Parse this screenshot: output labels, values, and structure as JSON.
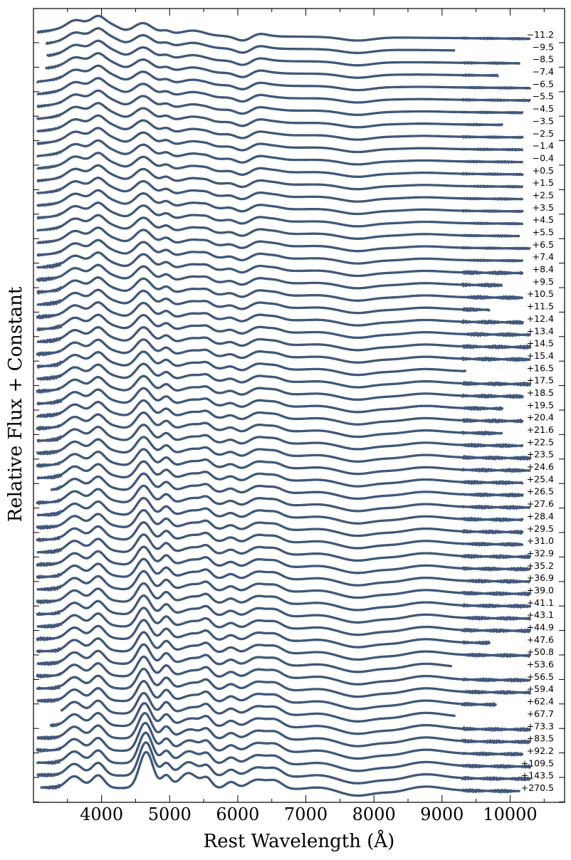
{
  "chart_data": {
    "type": "line",
    "xlabel": "Rest Wavelength (Å)",
    "ylabel": "Relative Flux + Constant",
    "xlim": [
      3000,
      10800
    ],
    "xticks": [
      4000,
      5000,
      6000,
      7000,
      8000,
      9000,
      10000
    ],
    "grid": false,
    "line_color": "#40587a",
    "series_note": "stacked spectra, one per phase label (days)",
    "series": [
      {
        "label": "−11.2",
        "x_start": 3050,
        "x_end": 10300
      },
      {
        "label": "−9.5",
        "x_start": 3180,
        "x_end": 9200
      },
      {
        "label": "−8.5",
        "x_start": 3200,
        "x_end": 10150
      },
      {
        "label": "−7.4",
        "x_start": 3180,
        "x_end": 9830
      },
      {
        "label": "−6.5",
        "x_start": 3050,
        "x_end": 10300
      },
      {
        "label": "−5.5",
        "x_start": 3050,
        "x_end": 10300
      },
      {
        "label": "−4.5",
        "x_start": 3050,
        "x_end": 10200
      },
      {
        "label": "−3.5",
        "x_start": 3050,
        "x_end": 9900
      },
      {
        "label": "−2.5",
        "x_start": 3050,
        "x_end": 10200
      },
      {
        "label": "−1.4",
        "x_start": 3050,
        "x_end": 10200
      },
      {
        "label": "−0.4",
        "x_start": 3050,
        "x_end": 10200
      },
      {
        "label": "+0.5",
        "x_start": 3050,
        "x_end": 10200
      },
      {
        "label": "+1.5",
        "x_start": 3050,
        "x_end": 10200
      },
      {
        "label": "+2.5",
        "x_start": 3050,
        "x_end": 10200
      },
      {
        "label": "+3.5",
        "x_start": 3050,
        "x_end": 10200
      },
      {
        "label": "+4.5",
        "x_start": 3050,
        "x_end": 10200
      },
      {
        "label": "+5.5",
        "x_start": 3050,
        "x_end": 10150
      },
      {
        "label": "+6.5",
        "x_start": 3050,
        "x_end": 10300
      },
      {
        "label": "+7.4",
        "x_start": 3050,
        "x_end": 10200
      },
      {
        "label": "+8.4",
        "x_start": 3050,
        "x_end": 10200
      },
      {
        "label": "+9.5",
        "x_start": 3050,
        "x_end": 9900
      },
      {
        "label": "+10.5",
        "x_start": 3050,
        "x_end": 10200
      },
      {
        "label": "+11.5",
        "x_start": 3050,
        "x_end": 9700
      },
      {
        "label": "+12.4",
        "x_start": 3050,
        "x_end": 10200
      },
      {
        "label": "+13.4",
        "x_start": 3050,
        "x_end": 10300
      },
      {
        "label": "+14.5",
        "x_start": 3050,
        "x_end": 10300
      },
      {
        "label": "+15.4",
        "x_start": 3050,
        "x_end": 10300
      },
      {
        "label": "+16.5",
        "x_start": 3050,
        "x_end": 9350
      },
      {
        "label": "+17.5",
        "x_start": 3050,
        "x_end": 10300
      },
      {
        "label": "+18.5",
        "x_start": 3050,
        "x_end": 10200
      },
      {
        "label": "+19.5",
        "x_start": 3050,
        "x_end": 9900
      },
      {
        "label": "+20.4",
        "x_start": 3050,
        "x_end": 10200
      },
      {
        "label": "+21.6",
        "x_start": 3050,
        "x_end": 9900
      },
      {
        "label": "+22.5",
        "x_start": 3050,
        "x_end": 10200
      },
      {
        "label": "+23.5",
        "x_start": 3050,
        "x_end": 10300
      },
      {
        "label": "+24.6",
        "x_start": 3050,
        "x_end": 10300
      },
      {
        "label": "+25.4",
        "x_start": 3050,
        "x_end": 10200
      },
      {
        "label": "+26.5",
        "x_start": 3250,
        "x_end": 10200
      },
      {
        "label": "+27.6",
        "x_start": 3050,
        "x_end": 10300
      },
      {
        "label": "+28.4",
        "x_start": 3050,
        "x_end": 10200
      },
      {
        "label": "+29.5",
        "x_start": 3050,
        "x_end": 10200
      },
      {
        "label": "+31.0",
        "x_start": 3050,
        "x_end": 10200
      },
      {
        "label": "+32.9",
        "x_start": 3050,
        "x_end": 10300
      },
      {
        "label": "+35.2",
        "x_start": 3050,
        "x_end": 10300
      },
      {
        "label": "+36.9",
        "x_start": 3050,
        "x_end": 10300
      },
      {
        "label": "+39.0",
        "x_start": 3050,
        "x_end": 10300
      },
      {
        "label": "+41.1",
        "x_start": 3050,
        "x_end": 10300
      },
      {
        "label": "+43.1",
        "x_start": 3050,
        "x_end": 10300
      },
      {
        "label": "+44.9",
        "x_start": 3050,
        "x_end": 10300
      },
      {
        "label": "+47.6",
        "x_start": 3050,
        "x_end": 9700
      },
      {
        "label": "+50.8",
        "x_start": 3050,
        "x_end": 10300
      },
      {
        "label": "+53.6",
        "x_start": 3050,
        "x_end": 9150
      },
      {
        "label": "+56.5",
        "x_start": 3050,
        "x_end": 10300
      },
      {
        "label": "+59.4",
        "x_start": 3050,
        "x_end": 10300
      },
      {
        "label": "+62.4",
        "x_start": 3050,
        "x_end": 9800
      },
      {
        "label": "+67.7",
        "x_start": 3400,
        "x_end": 9200
      },
      {
        "label": "+73.3",
        "x_start": 3250,
        "x_end": 10300
      },
      {
        "label": "+83.5",
        "x_start": 3050,
        "x_end": 10300
      },
      {
        "label": "+92.2",
        "x_start": 3050,
        "x_end": 10200
      },
      {
        "label": "+109.5",
        "x_start": 3050,
        "x_end": 10300
      },
      {
        "label": "+143.5",
        "x_start": 3050,
        "x_end": 10300
      },
      {
        "label": "+270.5",
        "x_start": 3100,
        "x_end": 10150
      }
    ]
  }
}
